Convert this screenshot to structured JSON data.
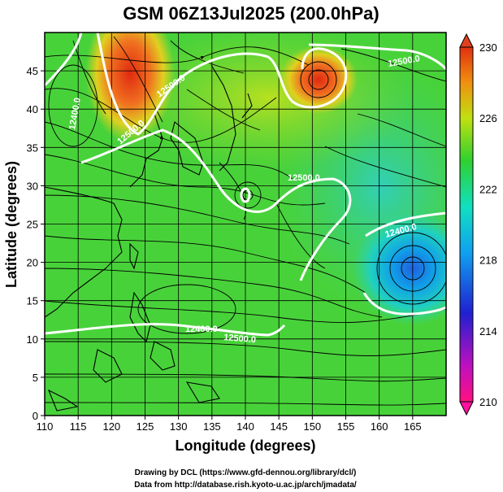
{
  "title": "GSM 06Z13Jul2025 (200.0hPa)",
  "xlabel": "Longitude (degrees)",
  "ylabel": "Latitude  (degrees)",
  "x_ticks": [
    "110",
    "115",
    "120",
    "125",
    "130",
    "135",
    "140",
    "145",
    "150",
    "155",
    "160",
    "165"
  ],
  "y_ticks": [
    "45",
    "40",
    "35",
    "30",
    "25",
    "20",
    "15",
    "10",
    "5",
    "0"
  ],
  "colorbar_labels": [
    "230",
    "226",
    "222",
    "218",
    "214",
    "210"
  ],
  "contour_labels": [
    "12500.0",
    "12500.0",
    "12500.0",
    "12400.0",
    "12400.0",
    "12500.0",
    "12400.0",
    "12500.0"
  ],
  "credits": {
    "line1": "Drawing by DCL (https://www.gfd-dennou.org/library/dcl/)",
    "line2": "Data from http://database.rish.kyoto-u.ac.jp/arch/jmadata/"
  },
  "colors": {
    "hot": "#e03a10",
    "warm": "#f0a020",
    "yellow": "#d8e020",
    "green": "#40d030",
    "cyan": "#20d0c0",
    "blue": "#3070e0",
    "contour": "#ffffff"
  }
}
